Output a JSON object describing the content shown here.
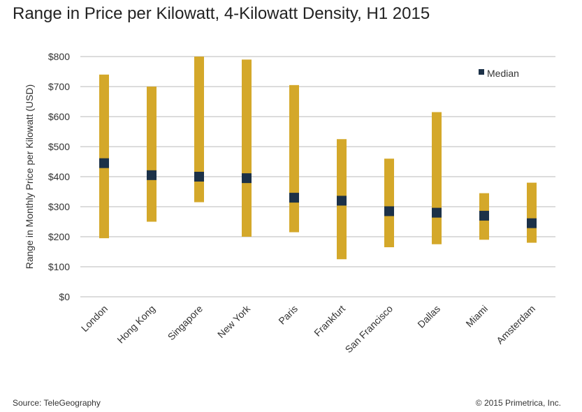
{
  "chart_data": {
    "type": "range-bar",
    "title": "Range in Price per Kilowatt, 4-Kilowatt Density, H1 2015",
    "ylabel": "Range in Monthly Price per Kilowatt (USD)",
    "xlabel": "",
    "ylim": [
      0,
      800
    ],
    "yticks": [
      "$0",
      "$100",
      "$200",
      "$300",
      "$400",
      "$500",
      "$600",
      "$700",
      "$800"
    ],
    "grid": true,
    "legend": {
      "position": "top-right",
      "entries": [
        "Median"
      ]
    },
    "categories": [
      "London",
      "Hong Kong",
      "Singapore",
      "New York",
      "Paris",
      "Frankfurt",
      "San Francisco",
      "Dallas",
      "Miami",
      "Amsterdam"
    ],
    "low": [
      195,
      250,
      315,
      200,
      215,
      125,
      165,
      175,
      190,
      180
    ],
    "high": [
      740,
      700,
      800,
      790,
      705,
      525,
      460,
      615,
      345,
      380
    ],
    "median": [
      445,
      405,
      400,
      395,
      330,
      320,
      285,
      280,
      270,
      245
    ],
    "colors": {
      "range": "#d4a82a",
      "median": "#1c3148",
      "grid": "#d0d0d0"
    }
  },
  "footer": {
    "source": "Source: TeleGeography",
    "copyright": "© 2015 Primetrica, Inc."
  }
}
